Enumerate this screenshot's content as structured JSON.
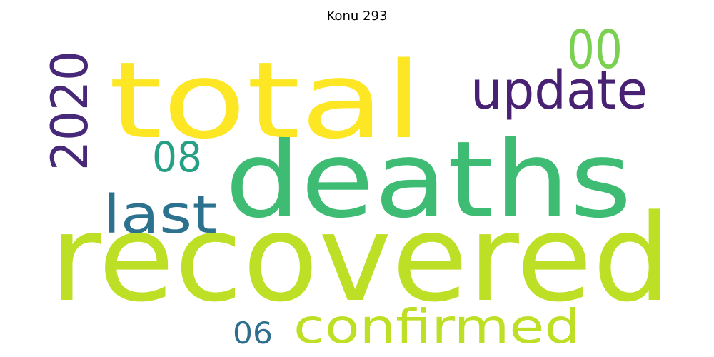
{
  "title": "Konu 293",
  "words": [
    {
      "text": "recovered",
      "color": "#bddf26"
    },
    {
      "text": "deaths",
      "color": "#3fbc73"
    },
    {
      "text": "total",
      "color": "#fde725"
    },
    {
      "text": "update",
      "color": "#482173"
    },
    {
      "text": "2020",
      "color": "#482878"
    },
    {
      "text": "00",
      "color": "#7ad151"
    },
    {
      "text": "08",
      "color": "#25a085"
    },
    {
      "text": "last",
      "color": "#2c728e"
    },
    {
      "text": "confirmed",
      "color": "#bddf26"
    },
    {
      "text": "06",
      "color": "#2e6d8e"
    }
  ]
}
